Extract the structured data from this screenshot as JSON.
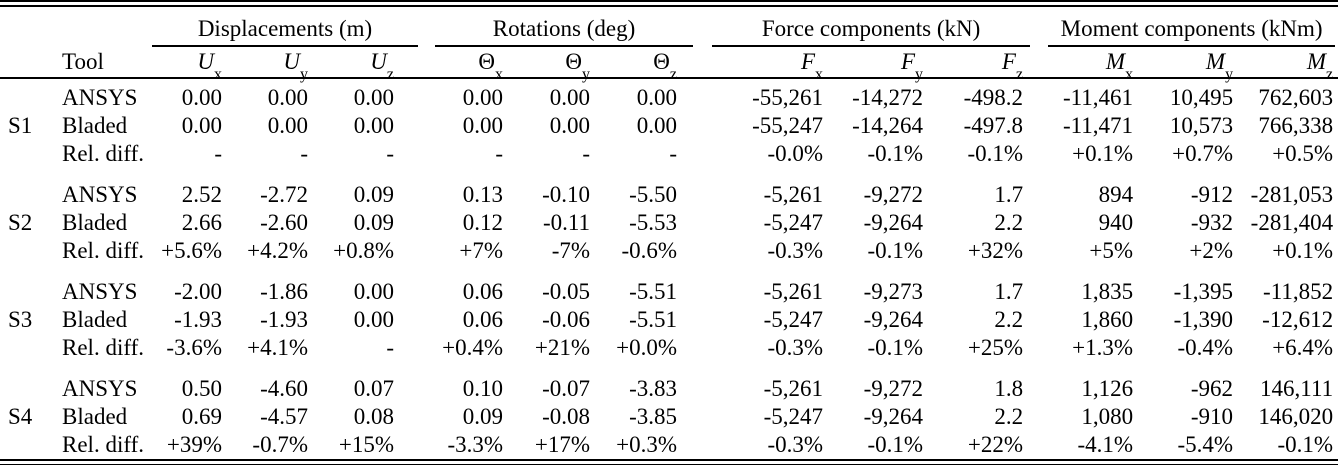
{
  "page": {
    "background": "#ffffff",
    "text_color": "#000000"
  },
  "table": {
    "tool_header": "Tool",
    "groups": [
      {
        "label": "Displacements (m)",
        "cols": [
          {
            "base": "U",
            "sub": "x",
            "italic": true
          },
          {
            "base": "U",
            "sub": "y",
            "italic": true
          },
          {
            "base": "U",
            "sub": "z",
            "italic": true
          }
        ]
      },
      {
        "label": "Rotations (deg)",
        "cols": [
          {
            "base": "Θ",
            "sub": "x",
            "italic": false
          },
          {
            "base": "Θ",
            "sub": "y",
            "italic": false
          },
          {
            "base": "Θ",
            "sub": "z",
            "italic": false
          }
        ]
      },
      {
        "label": "Force components (kN)",
        "cols": [
          {
            "base": "F",
            "sub": "x",
            "italic": true
          },
          {
            "base": "F",
            "sub": "y",
            "italic": true
          },
          {
            "base": "F",
            "sub": "z",
            "italic": true
          }
        ]
      },
      {
        "label": "Moment components (kNm)",
        "cols": [
          {
            "base": "M",
            "sub": "x",
            "italic": true
          },
          {
            "base": "M",
            "sub": "y",
            "italic": true
          },
          {
            "base": "M",
            "sub": "z",
            "italic": true
          }
        ]
      }
    ],
    "sections": [
      {
        "id": "S1",
        "rows": [
          {
            "tool": "ANSYS",
            "values": [
              "0.00",
              "0.00",
              "0.00",
              "0.00",
              "0.00",
              "0.00",
              "-55,261",
              "-14,272",
              "-498.2",
              "-11,461",
              "10,495",
              "762,603"
            ]
          },
          {
            "tool": "Bladed",
            "values": [
              "0.00",
              "0.00",
              "0.00",
              "0.00",
              "0.00",
              "0.00",
              "-55,247",
              "-14,264",
              "-497.8",
              "-11,471",
              "10,573",
              "766,338"
            ]
          },
          {
            "tool": "Rel. diff.",
            "values": [
              "-",
              "-",
              "-",
              "-",
              "-",
              "-",
              "-0.0%",
              "-0.1%",
              "-0.1%",
              "+0.1%",
              "+0.7%",
              "+0.5%"
            ]
          }
        ]
      },
      {
        "id": "S2",
        "rows": [
          {
            "tool": "ANSYS",
            "values": [
              "2.52",
              "-2.72",
              "0.09",
              "0.13",
              "-0.10",
              "-5.50",
              "-5,261",
              "-9,272",
              "1.7",
              "894",
              "-912",
              "-281,053"
            ]
          },
          {
            "tool": "Bladed",
            "values": [
              "2.66",
              "-2.60",
              "0.09",
              "0.12",
              "-0.11",
              "-5.53",
              "-5,247",
              "-9,264",
              "2.2",
              "940",
              "-932",
              "-281,404"
            ]
          },
          {
            "tool": "Rel. diff.",
            "values": [
              "+5.6%",
              "+4.2%",
              "+0.8%",
              "+7%",
              "-7%",
              "-0.6%",
              "-0.3%",
              "-0.1%",
              "+32%",
              "+5%",
              "+2%",
              "+0.1%"
            ]
          }
        ]
      },
      {
        "id": "S3",
        "rows": [
          {
            "tool": "ANSYS",
            "values": [
              "-2.00",
              "-1.86",
              "0.00",
              "0.06",
              "-0.05",
              "-5.51",
              "-5,261",
              "-9,273",
              "1.7",
              "1,835",
              "-1,395",
              "-11,852"
            ]
          },
          {
            "tool": "Bladed",
            "values": [
              "-1.93",
              "-1.93",
              "0.00",
              "0.06",
              "-0.06",
              "-5.51",
              "-5,247",
              "-9,264",
              "2.2",
              "1,860",
              "-1,390",
              "-12,612"
            ]
          },
          {
            "tool": "Rel. diff.",
            "values": [
              "-3.6%",
              "+4.1%",
              "-",
              "+0.4%",
              "+21%",
              "+0.0%",
              "-0.3%",
              "-0.1%",
              "+25%",
              "+1.3%",
              "-0.4%",
              "+6.4%"
            ]
          }
        ]
      },
      {
        "id": "S4",
        "rows": [
          {
            "tool": "ANSYS",
            "values": [
              "0.50",
              "-4.60",
              "0.07",
              "0.10",
              "-0.07",
              "-3.83",
              "-5,261",
              "-9,272",
              "1.8",
              "1,126",
              "-962",
              "146,111"
            ]
          },
          {
            "tool": "Bladed",
            "values": [
              "0.69",
              "-4.57",
              "0.08",
              "0.09",
              "-0.08",
              "-3.85",
              "-5,247",
              "-9,264",
              "2.2",
              "1,080",
              "-910",
              "146,020"
            ]
          },
          {
            "tool": "Rel. diff.",
            "values": [
              "+39%",
              "-0.7%",
              "+15%",
              "-3.3%",
              "+17%",
              "+0.3%",
              "-0.3%",
              "-0.1%",
              "+22%",
              "-4.1%",
              "-5.4%",
              "-0.1%"
            ]
          }
        ]
      }
    ]
  }
}
